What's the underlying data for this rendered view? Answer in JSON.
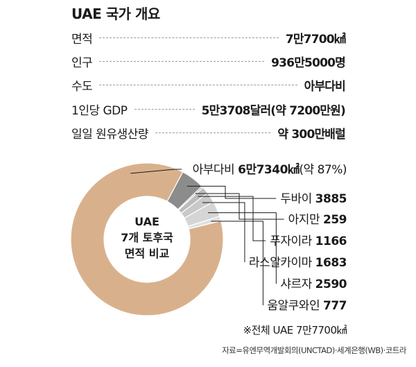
{
  "title": "UAE 국가 개요",
  "overview": [
    {
      "label": "면적",
      "value": "7만7700㎢"
    },
    {
      "label": "인구",
      "value": "936만5000명"
    },
    {
      "label": "수도",
      "value": "아부다비"
    },
    {
      "label": "1인당 GDP",
      "value": "5만3708달러(약 7200만원)"
    },
    {
      "label": "일일 원유생산량",
      "value": "약 300만배럴"
    }
  ],
  "chart_data": {
    "type": "pie",
    "donut": true,
    "center_label": [
      "UAE",
      "7개 토후국",
      "면적 비교"
    ],
    "categories": [
      "아부다비",
      "두바이",
      "아지만",
      "푸자이라",
      "라스알카이마",
      "샤르자",
      "움알쿠와인"
    ],
    "values": [
      67340,
      3885,
      259,
      1166,
      1683,
      2590,
      777
    ],
    "value_labels": [
      "6만7340㎢",
      "3885",
      "259",
      "1166",
      "1683",
      "2590",
      "777"
    ],
    "highlight_note": "(약 87%)",
    "total_note": "※전체 UAE  7만7700㎢",
    "colors": [
      "#d8b18c",
      "#8c8c8c",
      "#a8a8a8",
      "#bcbcbc",
      "#c9c9c9",
      "#d5d5d5",
      "#e0e0e0"
    ]
  },
  "source": "자료=유엔무역개발회의(UNCTAD)·세계은행(WB)·코트라"
}
